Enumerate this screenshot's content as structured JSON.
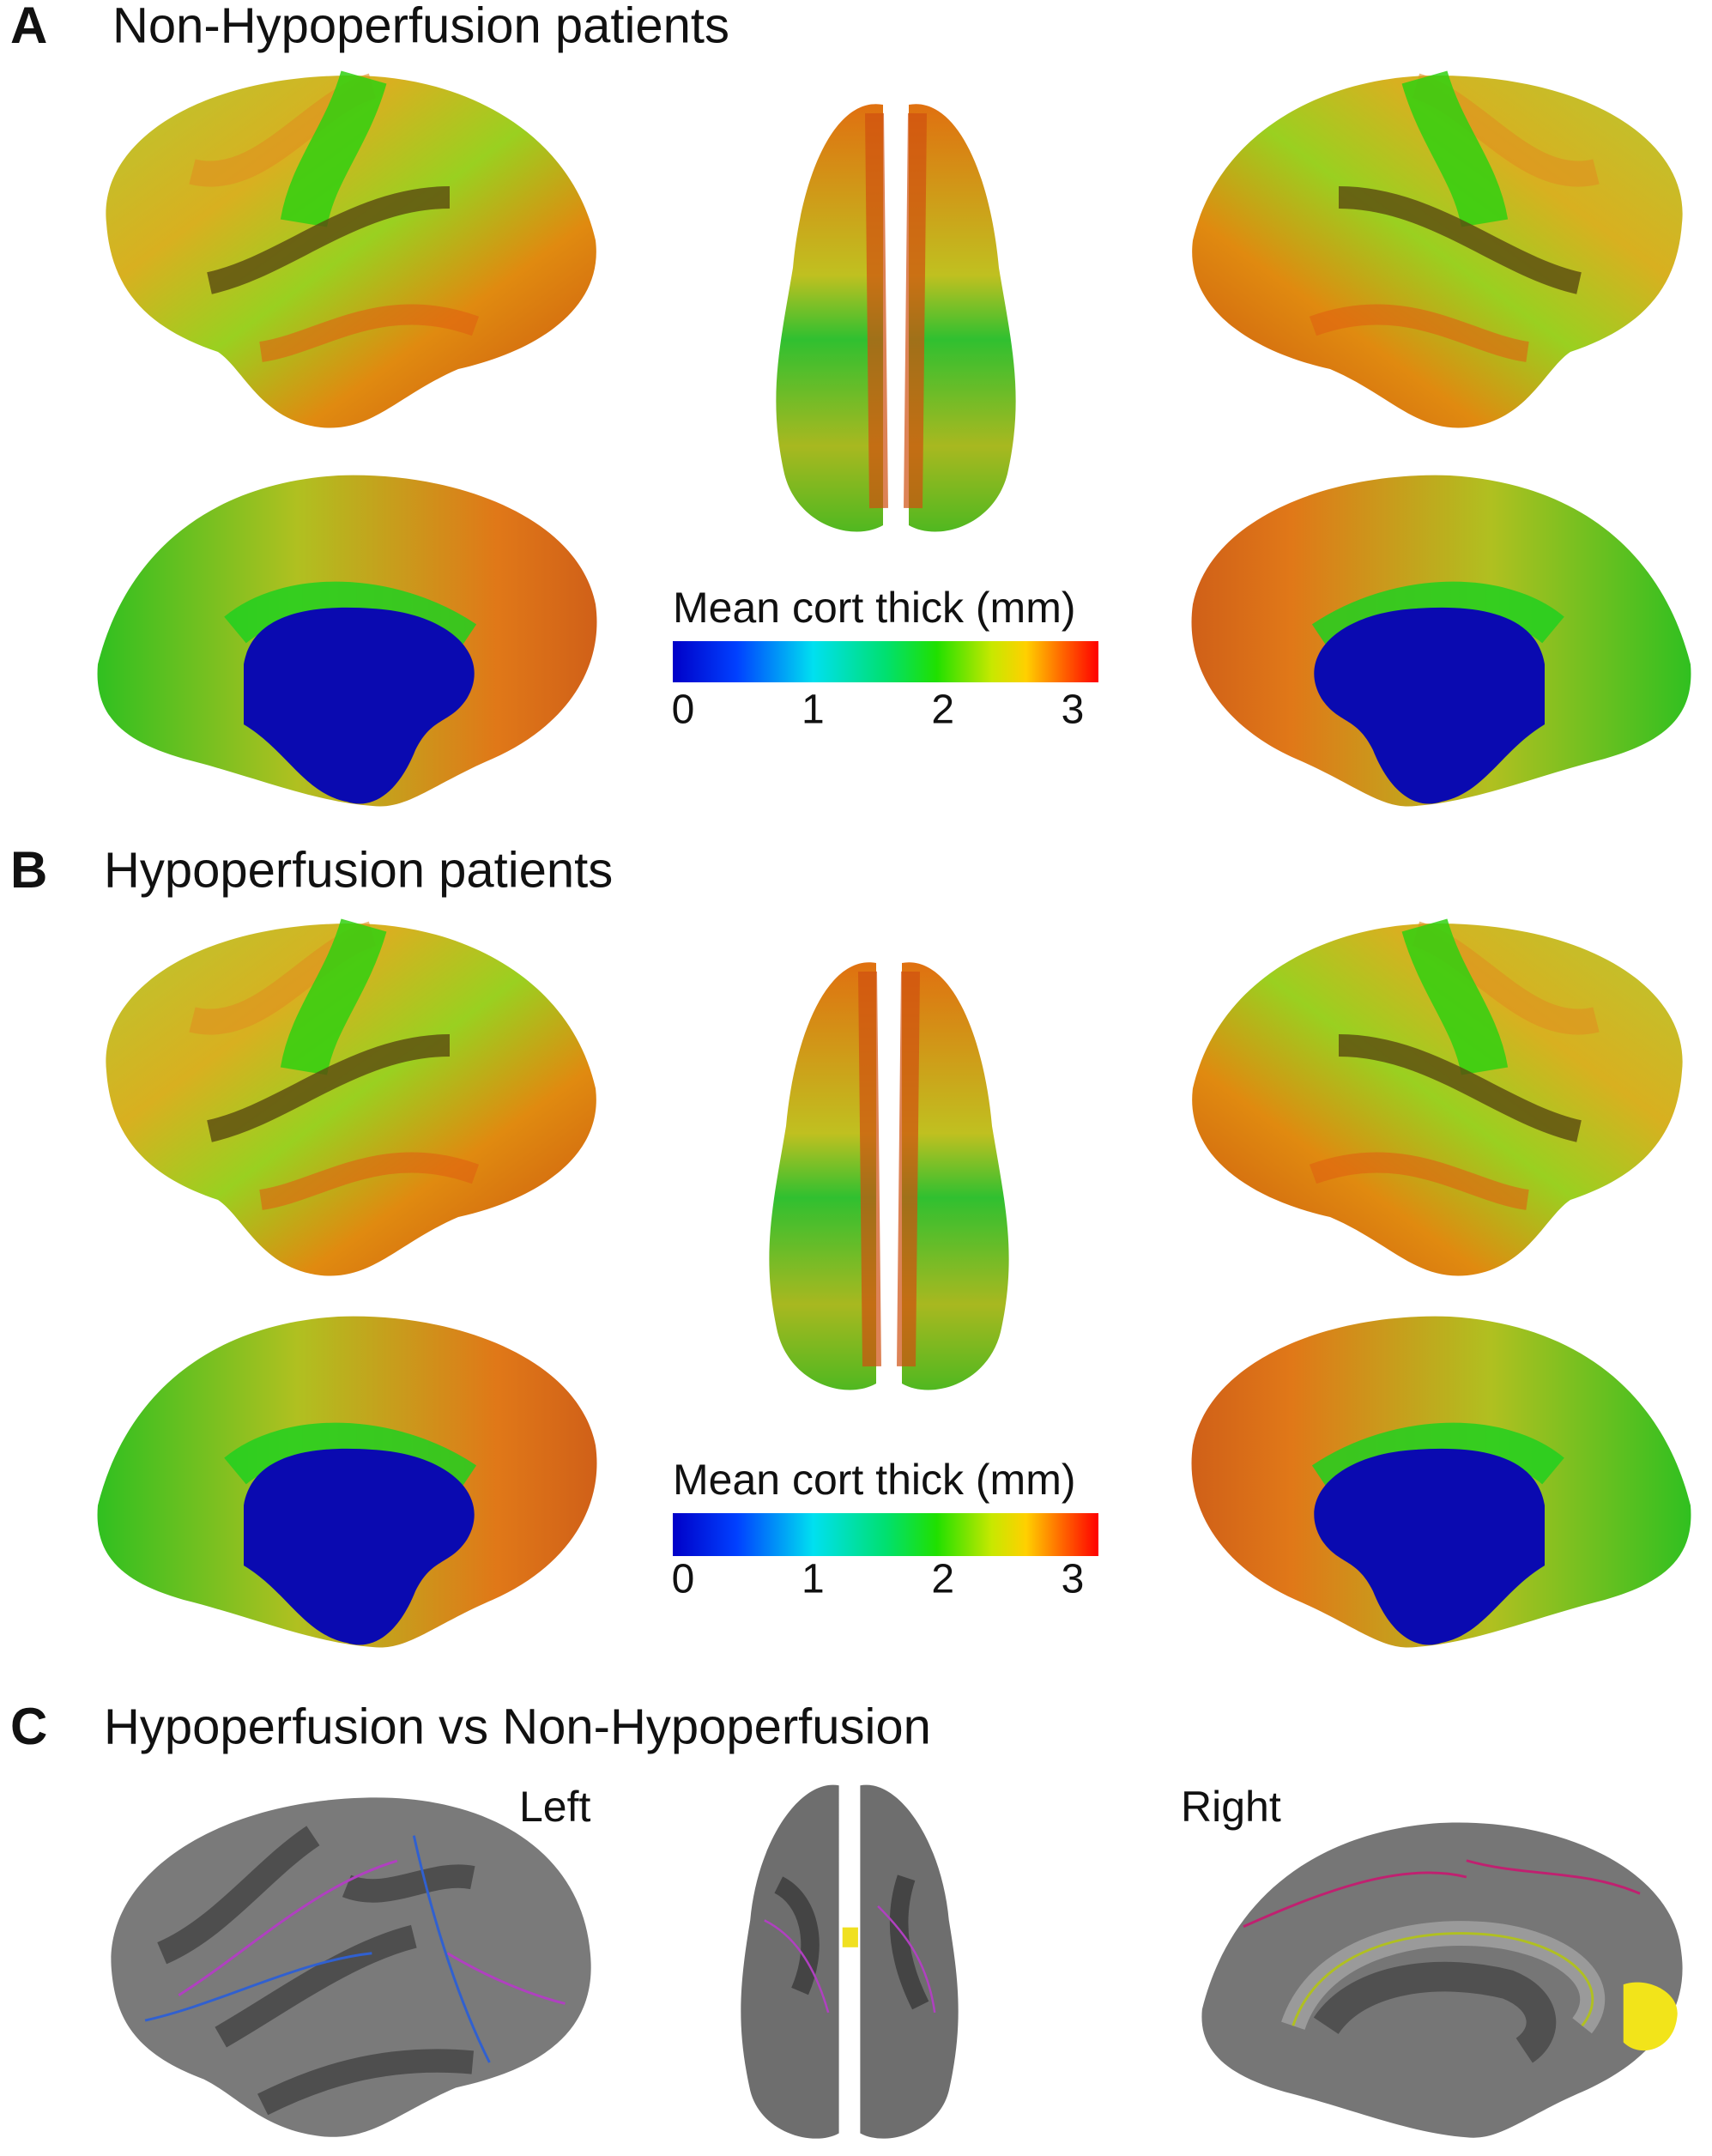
{
  "panels": [
    {
      "label": "A",
      "title": "Non-Hypoperfusion patients",
      "colorbar": {
        "title": "Mean cort thick (mm)",
        "ticks": [
          0,
          1,
          2,
          3
        ]
      }
    },
    {
      "label": "B",
      "title": "Hypoperfusion patients",
      "colorbar": {
        "title": "Mean cort thick (mm)",
        "ticks": [
          0,
          1,
          2,
          3
        ]
      }
    },
    {
      "label": "C",
      "title": "Hypoperfusion vs Non-Hypoperfusion",
      "hemisphere_labels": [
        "Left",
        "Right"
      ]
    }
  ]
}
